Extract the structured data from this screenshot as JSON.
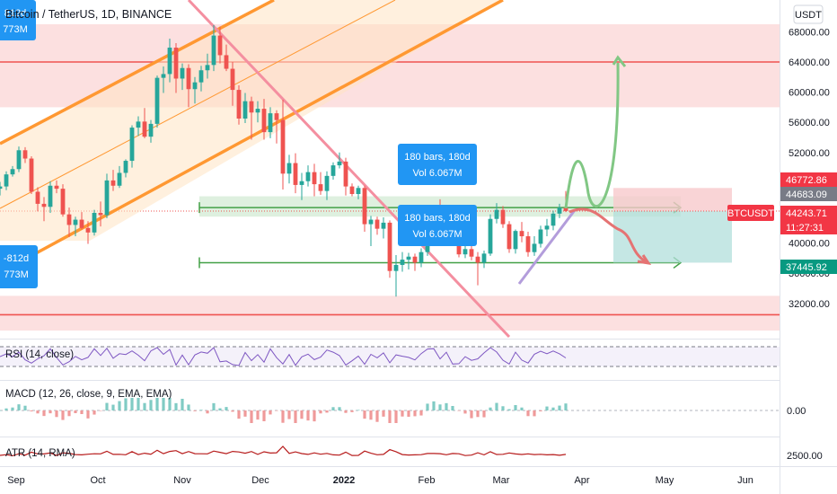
{
  "header": {
    "symbol_title": "Bitcoin / TetherUS, 1D, BINANCE",
    "currency": "USDT"
  },
  "colors": {
    "up": "#26a69a",
    "down": "#ef5350",
    "resistance_zone": "#f9c6c6",
    "support_zone": "#f9c6c6",
    "channel": "#ff9832",
    "channel_fill": "#ffe4c2",
    "downtrend": "#f48fa0",
    "range_box": "#c8e6c9",
    "range_line": "#43a047",
    "bull_path": "#81c784",
    "bear_path": "#e57373",
    "rsi_line": "#7e57c2",
    "atr_line": "#b71c1c",
    "measure_box": "#2196f3"
  },
  "chart_data": {
    "type": "candlestick",
    "title": "Bitcoin / TetherUS, 1D, BINANCE",
    "y_unit": "USDT",
    "ylim": [
      28000,
      70000
    ],
    "y_ticks": [
      32000,
      36000,
      40000,
      44000,
      48000,
      52000,
      56000,
      60000,
      64000,
      68000
    ],
    "x_ticks": [
      "Sep",
      "Oct",
      "Nov",
      "Dec",
      "2022",
      "Feb",
      "Mar",
      "Apr",
      "May",
      "Jun"
    ],
    "price_labels": [
      {
        "value": "46772.86",
        "style": "red"
      },
      {
        "value": "44683.09",
        "style": "grey"
      },
      {
        "value": "44243.71",
        "style": "red"
      },
      {
        "value": "11:27:31",
        "style": "red"
      },
      {
        "value": "BTCUSDT",
        "style": "red-tag"
      },
      {
        "value": "37445.92",
        "style": "green"
      }
    ],
    "zones": [
      {
        "name": "resistance",
        "from": 58000,
        "to": 69000,
        "line": 64000
      },
      {
        "name": "support",
        "from": 28500,
        "to": 33000,
        "line": 30500
      },
      {
        "name": "range-top",
        "from": 43500,
        "to": 46200,
        "line": 44700
      },
      {
        "name": "range-bottom",
        "line": 37400
      }
    ],
    "measure_labels": [
      {
        "bars": "180 bars, 180d",
        "vol": "Vol 6.067M"
      },
      {
        "bars": "180 bars, 180d",
        "vol": "Vol 6.067M"
      },
      {
        "bars": "-812d",
        "vol": "773M"
      },
      {
        "bars": "812d",
        "vol": "773M"
      }
    ],
    "candles_approx": [
      [
        47200,
        48100,
        46300,
        47500
      ],
      [
        47500,
        49500,
        47000,
        49100
      ],
      [
        49100,
        50200,
        48800,
        49800
      ],
      [
        49800,
        52800,
        49400,
        52300
      ],
      [
        52300,
        52700,
        50600,
        51200
      ],
      [
        51200,
        51500,
        46500,
        46800
      ],
      [
        46800,
        47400,
        44200,
        45200
      ],
      [
        45200,
        46100,
        42900,
        44800
      ],
      [
        44800,
        48200,
        44000,
        47600
      ],
      [
        47600,
        48300,
        46600,
        47200
      ],
      [
        47200,
        47800,
        43500,
        43800
      ],
      [
        43800,
        44700,
        40800,
        42400
      ],
      [
        42400,
        43500,
        40900,
        43100
      ],
      [
        43100,
        44100,
        41800,
        42000
      ],
      [
        42000,
        42900,
        39900,
        41400
      ],
      [
        41400,
        44400,
        41000,
        44000
      ],
      [
        44000,
        45500,
        42200,
        43700
      ],
      [
        43700,
        49200,
        43300,
        48300
      ],
      [
        48300,
        49700,
        46900,
        47600
      ],
      [
        47600,
        50200,
        47300,
        49300
      ],
      [
        49300,
        51100,
        48700,
        50900
      ],
      [
        50900,
        55600,
        50000,
        55300
      ],
      [
        55300,
        56800,
        54200,
        56100
      ],
      [
        56100,
        57900,
        53900,
        54100
      ],
      [
        54100,
        56300,
        53300,
        55800
      ],
      [
        55800,
        62200,
        55300,
        61900
      ],
      [
        61900,
        63400,
        59900,
        62400
      ],
      [
        62400,
        67100,
        61300,
        65900
      ],
      [
        65900,
        66500,
        59900,
        61800
      ],
      [
        61800,
        63800,
        60300,
        63200
      ],
      [
        63200,
        63700,
        58000,
        60400
      ],
      [
        60400,
        62000,
        58500,
        61300
      ],
      [
        61300,
        63500,
        60100,
        62900
      ],
      [
        62900,
        65100,
        61800,
        63600
      ],
      [
        63600,
        68900,
        62800,
        67500
      ],
      [
        67500,
        68700,
        63800,
        64900
      ],
      [
        64900,
        66300,
        62800,
        63100
      ],
      [
        63100,
        64000,
        58200,
        60300
      ],
      [
        60300,
        60900,
        55700,
        56500
      ],
      [
        56500,
        59900,
        55900,
        58800
      ],
      [
        58800,
        59400,
        53700,
        57300
      ],
      [
        57300,
        58800,
        56000,
        57800
      ],
      [
        57800,
        59100,
        53700,
        54700
      ],
      [
        54700,
        58000,
        53900,
        57200
      ],
      [
        57200,
        57600,
        53200,
        56300
      ],
      [
        56300,
        59000,
        47100,
        49200
      ],
      [
        49200,
        51700,
        47900,
        50600
      ],
      [
        50600,
        51900,
        46600,
        47700
      ],
      [
        47700,
        49300,
        45700,
        48200
      ],
      [
        48200,
        50300,
        47500,
        49400
      ],
      [
        49400,
        50500,
        46200,
        47800
      ],
      [
        47800,
        49400,
        46400,
        46900
      ],
      [
        46900,
        49500,
        45700,
        48900
      ],
      [
        48900,
        50700,
        48400,
        50300
      ],
      [
        50300,
        52000,
        49900,
        50800
      ],
      [
        50800,
        51300,
        46300,
        47500
      ],
      [
        47500,
        47900,
        46200,
        46500
      ],
      [
        46500,
        47600,
        45800,
        47300
      ],
      [
        47300,
        47600,
        41500,
        42500
      ],
      [
        42500,
        43600,
        39600,
        43100
      ],
      [
        43100,
        43500,
        41100,
        41900
      ],
      [
        41900,
        43400,
        40600,
        42700
      ],
      [
        42700,
        43000,
        35400,
        36300
      ],
      [
        36300,
        38400,
        32900,
        37100
      ],
      [
        37100,
        38800,
        36200,
        37800
      ],
      [
        37800,
        38700,
        36500,
        38200
      ],
      [
        38200,
        38600,
        36300,
        37400
      ],
      [
        37400,
        39300,
        36800,
        38800
      ],
      [
        38800,
        42000,
        38300,
        41600
      ],
      [
        41600,
        44800,
        41100,
        44200
      ],
      [
        44200,
        45800,
        42300,
        42500
      ],
      [
        42500,
        44400,
        42000,
        43900
      ],
      [
        43900,
        44300,
        40600,
        40900
      ],
      [
        40900,
        41500,
        38100,
        38500
      ],
      [
        38500,
        39600,
        38000,
        39200
      ],
      [
        39200,
        39800,
        37700,
        38200
      ],
      [
        38200,
        38800,
        34400,
        37400
      ],
      [
        37400,
        39000,
        36700,
        38600
      ],
      [
        38600,
        43800,
        38300,
        43200
      ],
      [
        43200,
        45300,
        42600,
        44400
      ],
      [
        44400,
        44900,
        42000,
        42500
      ],
      [
        42500,
        42900,
        38700,
        39200
      ],
      [
        39200,
        41800,
        38600,
        41600
      ],
      [
        41600,
        42800,
        40100,
        40900
      ],
      [
        40900,
        41500,
        38200,
        38800
      ],
      [
        38800,
        40900,
        38300,
        39900
      ],
      [
        39900,
        42300,
        39400,
        41800
      ],
      [
        41800,
        43200,
        40900,
        42300
      ],
      [
        42300,
        44300,
        41700,
        43900
      ],
      [
        43900,
        45200,
        43300,
        44700
      ],
      [
        44700,
        46900,
        44100,
        44250
      ]
    ],
    "rsi": {
      "label": "RSI (14, close)"
    },
    "macd": {
      "label": "MACD (12, 26, close, 9, EMA, EMA)",
      "tick": "0.00"
    },
    "atr": {
      "label": "ATR (14, RMA)",
      "tick": "2500.00"
    }
  }
}
